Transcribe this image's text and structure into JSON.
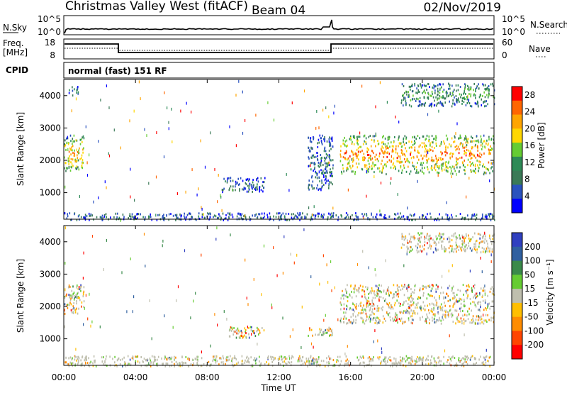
{
  "header": {
    "station": "Christmas Valley West (fitACF)",
    "beam": "Beam 04",
    "date": "02/Nov/2019"
  },
  "top_strip": {
    "left_label": "N.Sky",
    "right_label": "N.Search",
    "left_ticks": [
      "10^5",
      "10^0"
    ],
    "right_ticks": [
      "10^5",
      "10^0"
    ]
  },
  "freq_strip": {
    "left_label_1": "Freq.",
    "left_label_2": "[MHz]",
    "right_label": "Nave",
    "left_ticks": [
      "18",
      "8"
    ],
    "right_ticks": [
      "60",
      "0"
    ]
  },
  "cpid": {
    "label": "CPID",
    "value": "normal (fast) 151 RF"
  },
  "x_axis": {
    "label": "Time UT",
    "ticks": [
      "00:00",
      "04:00",
      "08:00",
      "12:00",
      "16:00",
      "20:00",
      "00:00"
    ]
  },
  "colors": {
    "power_scale": [
      "#0000ff",
      "#2a52be",
      "#3b7a57",
      "#2e8b57",
      "#66cc33",
      "#ffd700",
      "#ffa500",
      "#ff6600",
      "#ff0000"
    ],
    "velocity_scale": [
      "#3040c0",
      "#3060a0",
      "#3a8a4a",
      "#66cc33",
      "#bfbfae",
      "#ffbf00",
      "#ff8c00",
      "#ff4500",
      "#ff0000"
    ]
  },
  "chart_data": [
    {
      "type": "heatmap",
      "title": "Power",
      "xlabel": "",
      "ylabel": "Slant Range [km]",
      "x_range_hours": [
        0,
        24
      ],
      "ylim": [
        180,
        4500
      ],
      "y_ticks": [
        1000,
        2000,
        3000,
        4000
      ],
      "colorbar": {
        "label": "Power [dB]",
        "range": [
          0,
          30
        ],
        "ticks": [
          4,
          8,
          12,
          16,
          20,
          24,
          28
        ]
      },
      "echo_regions": [
        {
          "t0": 0.0,
          "t1": 1.1,
          "r0": 1700,
          "r1": 2800,
          "level": 0.75
        },
        {
          "t0": 0.2,
          "t1": 0.8,
          "r0": 4000,
          "r1": 4300,
          "level": 0.3
        },
        {
          "t0": 8.8,
          "t1": 11.2,
          "r0": 1050,
          "r1": 1500,
          "level": 0.25
        },
        {
          "t0": 13.6,
          "t1": 15.0,
          "r0": 1100,
          "r1": 2800,
          "level": 0.25
        },
        {
          "t0": 15.4,
          "t1": 24.0,
          "r0": 1600,
          "r1": 2800,
          "level": 0.85
        },
        {
          "t0": 18.8,
          "t1": 24.0,
          "r0": 3700,
          "r1": 4400,
          "level": 0.4
        },
        {
          "t0": 0.0,
          "t1": 24.0,
          "r0": 180,
          "r1": 400,
          "level": 0.2
        }
      ]
    },
    {
      "type": "heatmap",
      "title": "Velocity",
      "xlabel": "Time UT",
      "ylabel": "Slant Range [km]",
      "x_range_hours": [
        0,
        24
      ],
      "ylim": [
        180,
        4500
      ],
      "y_ticks": [
        1000,
        2000,
        3000,
        4000
      ],
      "colorbar": {
        "label": "Velocity [m s⁻¹]",
        "range": [
          -250,
          250
        ],
        "ticks": [
          200,
          100,
          50,
          15,
          -15,
          -50,
          -100,
          -200
        ]
      },
      "echo_regions": [
        {
          "t0": 0.0,
          "t1": 1.1,
          "r0": 1800,
          "r1": 2700,
          "level": 0.5
        },
        {
          "t0": 9.2,
          "t1": 11.2,
          "r0": 1050,
          "r1": 1400,
          "level": 0.3
        },
        {
          "t0": 13.6,
          "t1": 15.0,
          "r0": 1100,
          "r1": 1400,
          "level": 0.3
        },
        {
          "t0": 15.4,
          "t1": 24.0,
          "r0": 1500,
          "r1": 2700,
          "level": 0.5
        },
        {
          "t0": 18.8,
          "t1": 24.0,
          "r0": 3700,
          "r1": 4300,
          "level": 0.6
        },
        {
          "t0": 0.0,
          "t1": 24.0,
          "r0": 180,
          "r1": 500,
          "level": 0.7
        }
      ]
    }
  ]
}
